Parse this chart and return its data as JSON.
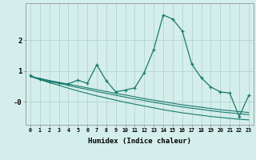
{
  "xlabel": "Humidex (Indice chaleur)",
  "x": [
    0,
    1,
    2,
    3,
    4,
    5,
    6,
    7,
    8,
    9,
    10,
    11,
    12,
    13,
    14,
    15,
    16,
    17,
    18,
    19,
    20,
    21,
    22,
    23
  ],
  "y_main": [
    0.85,
    0.72,
    0.65,
    0.6,
    0.58,
    0.7,
    0.6,
    1.2,
    0.68,
    0.32,
    0.38,
    0.45,
    0.95,
    1.7,
    2.82,
    2.68,
    2.3,
    1.22,
    0.78,
    0.48,
    0.32,
    0.28,
    -0.48,
    0.2
  ],
  "y_trend1": [
    0.82,
    0.76,
    0.69,
    0.63,
    0.57,
    0.51,
    0.45,
    0.39,
    0.33,
    0.27,
    0.22,
    0.16,
    0.1,
    0.05,
    0.0,
    -0.05,
    -0.1,
    -0.14,
    -0.18,
    -0.22,
    -0.26,
    -0.29,
    -0.32,
    -0.35
  ],
  "y_trend2": [
    0.82,
    0.74,
    0.67,
    0.6,
    0.53,
    0.46,
    0.4,
    0.33,
    0.27,
    0.21,
    0.15,
    0.09,
    0.04,
    -0.02,
    -0.07,
    -0.12,
    -0.17,
    -0.21,
    -0.25,
    -0.29,
    -0.33,
    -0.36,
    -0.39,
    -0.42
  ],
  "y_trend3": [
    0.82,
    0.72,
    0.62,
    0.53,
    0.44,
    0.35,
    0.27,
    0.19,
    0.12,
    0.05,
    -0.02,
    -0.08,
    -0.14,
    -0.2,
    -0.26,
    -0.31,
    -0.36,
    -0.4,
    -0.44,
    -0.48,
    -0.51,
    -0.54,
    -0.57,
    -0.59
  ],
  "line_color": "#1a7a6e",
  "bg_color": "#d4eeeb",
  "grid_color": "#b0ceca",
  "ylim": [
    -0.75,
    3.2
  ],
  "xlim": [
    -0.5,
    23.5
  ]
}
